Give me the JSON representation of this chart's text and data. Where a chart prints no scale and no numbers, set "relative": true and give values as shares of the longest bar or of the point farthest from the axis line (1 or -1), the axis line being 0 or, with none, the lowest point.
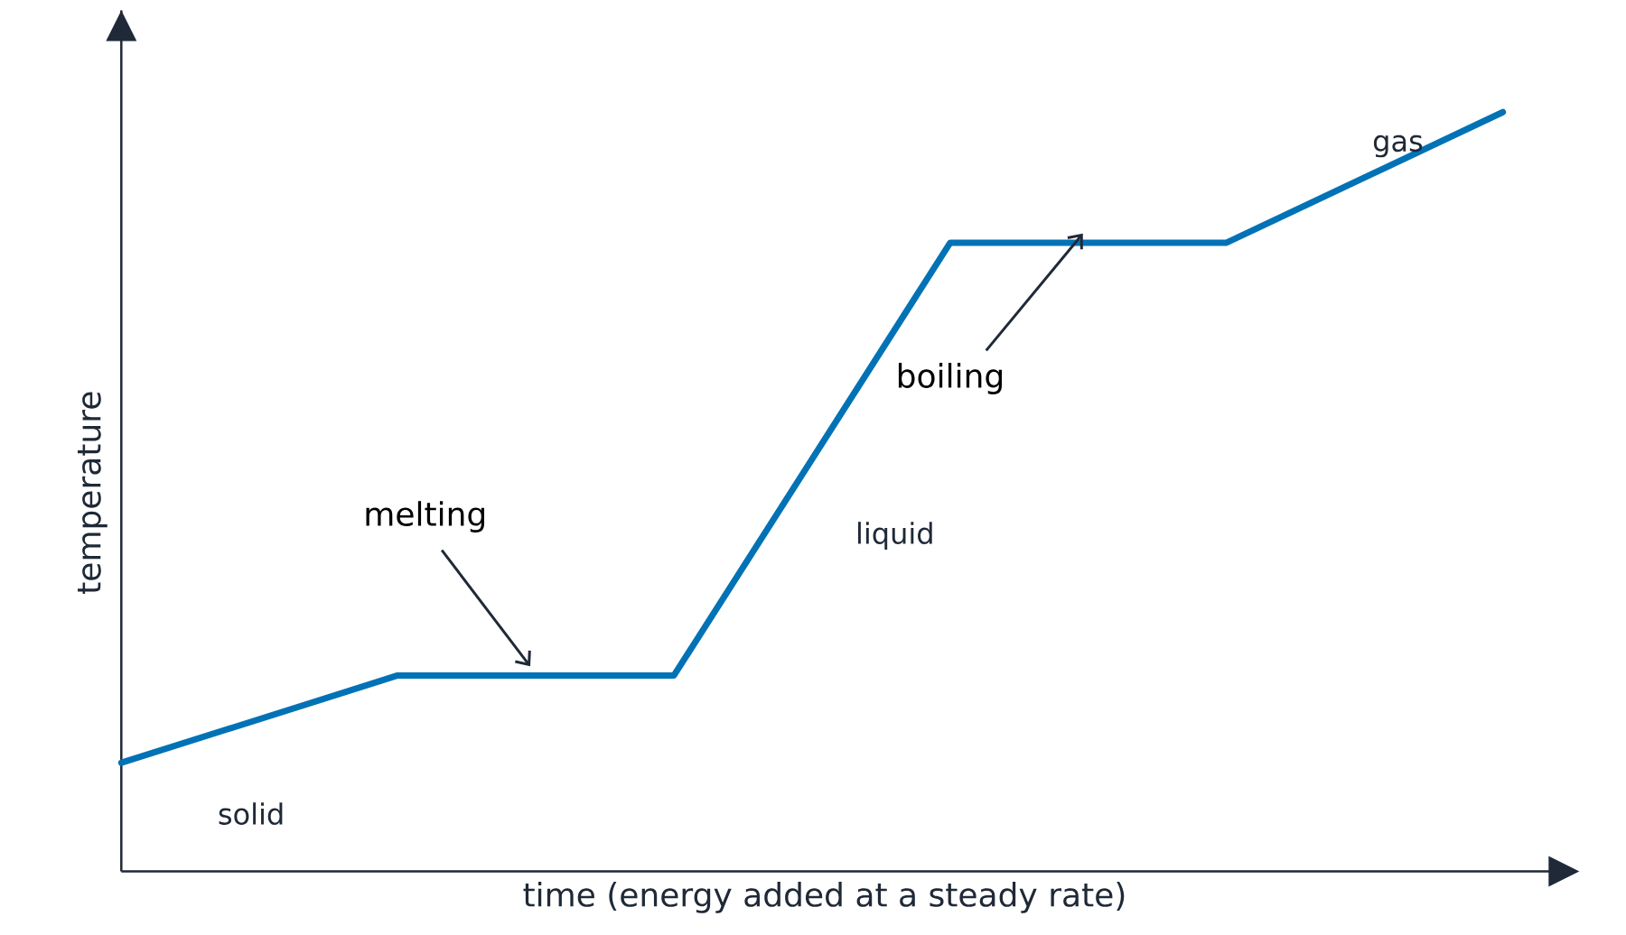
{
  "chart_data": {
    "type": "line",
    "relative": true,
    "xlabel": "time (energy added at a steady rate)",
    "ylabel": "temperature",
    "color": "#0072b5",
    "categories": [
      null,
      null,
      null,
      null,
      null,
      null
    ],
    "values": [
      0.143,
      0.258,
      0.258,
      0.828,
      0.828,
      1
    ],
    "annotations": [
      "solid",
      "melting",
      "liquid",
      "boiling",
      "gas"
    ]
  }
}
